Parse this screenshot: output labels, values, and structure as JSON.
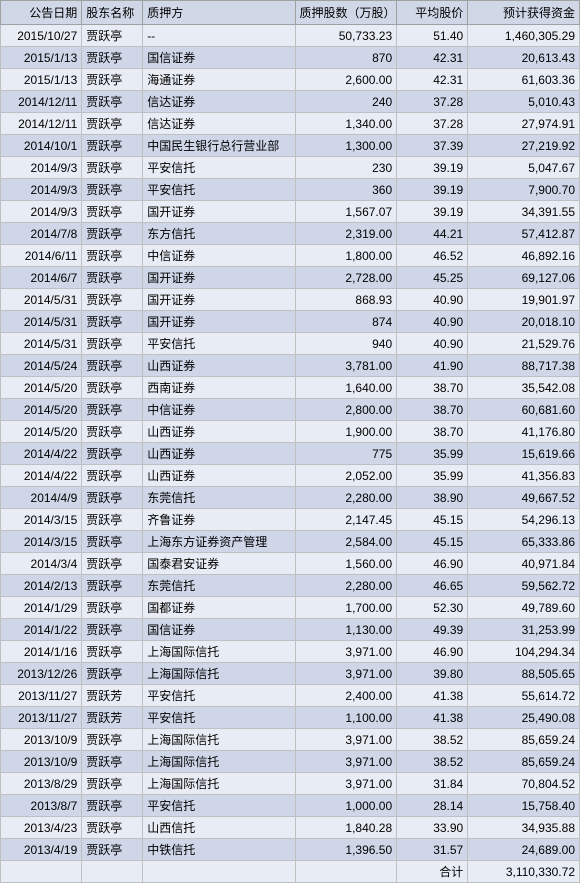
{
  "table": {
    "columns": [
      "公告日期",
      "股东名称",
      "质押方",
      "质押股数（万股）",
      "平均股价",
      "预计获得资金"
    ],
    "column_keys": [
      "date",
      "name",
      "party",
      "shares",
      "price",
      "funds"
    ],
    "column_classes": [
      "col-date",
      "col-name",
      "col-party",
      "col-shares",
      "col-price",
      "col-funds"
    ],
    "rows": [
      {
        "date": "2015/10/27",
        "name": "贾跃亭",
        "party": "--",
        "shares": "50,733.23",
        "price": "51.40",
        "funds": "1,460,305.29"
      },
      {
        "date": "2015/1/13",
        "name": "贾跃亭",
        "party": "国信证券",
        "shares": "870",
        "price": "42.31",
        "funds": "20,613.43"
      },
      {
        "date": "2015/1/13",
        "name": "贾跃亭",
        "party": "海通证券",
        "shares": "2,600.00",
        "price": "42.31",
        "funds": "61,603.36"
      },
      {
        "date": "2014/12/11",
        "name": "贾跃亭",
        "party": "信达证券",
        "shares": "240",
        "price": "37.28",
        "funds": "5,010.43"
      },
      {
        "date": "2014/12/11",
        "name": "贾跃亭",
        "party": "信达证券",
        "shares": "1,340.00",
        "price": "37.28",
        "funds": "27,974.91"
      },
      {
        "date": "2014/10/1",
        "name": "贾跃亭",
        "party": "中国民生银行总行营业部",
        "shares": "1,300.00",
        "price": "37.39",
        "funds": "27,219.92"
      },
      {
        "date": "2014/9/3",
        "name": "贾跃亭",
        "party": "平安信托",
        "shares": "230",
        "price": "39.19",
        "funds": "5,047.67"
      },
      {
        "date": "2014/9/3",
        "name": "贾跃亭",
        "party": "平安信托",
        "shares": "360",
        "price": "39.19",
        "funds": "7,900.70"
      },
      {
        "date": "2014/9/3",
        "name": "贾跃亭",
        "party": "国开证券",
        "shares": "1,567.07",
        "price": "39.19",
        "funds": "34,391.55"
      },
      {
        "date": "2014/7/8",
        "name": "贾跃亭",
        "party": "东方信托",
        "shares": "2,319.00",
        "price": "44.21",
        "funds": "57,412.87"
      },
      {
        "date": "2014/6/11",
        "name": "贾跃亭",
        "party": "中信证券",
        "shares": "1,800.00",
        "price": "46.52",
        "funds": "46,892.16"
      },
      {
        "date": "2014/6/7",
        "name": "贾跃亭",
        "party": "国开证券",
        "shares": "2,728.00",
        "price": "45.25",
        "funds": "69,127.06"
      },
      {
        "date": "2014/5/31",
        "name": "贾跃亭",
        "party": "国开证券",
        "shares": "868.93",
        "price": "40.90",
        "funds": "19,901.97"
      },
      {
        "date": "2014/5/31",
        "name": "贾跃亭",
        "party": "国开证券",
        "shares": "874",
        "price": "40.90",
        "funds": "20,018.10"
      },
      {
        "date": "2014/5/31",
        "name": "贾跃亭",
        "party": "平安信托",
        "shares": "940",
        "price": "40.90",
        "funds": "21,529.76"
      },
      {
        "date": "2014/5/24",
        "name": "贾跃亭",
        "party": "山西证券",
        "shares": "3,781.00",
        "price": "41.90",
        "funds": "88,717.38"
      },
      {
        "date": "2014/5/20",
        "name": "贾跃亭",
        "party": "西南证券",
        "shares": "1,640.00",
        "price": "38.70",
        "funds": "35,542.08"
      },
      {
        "date": "2014/5/20",
        "name": "贾跃亭",
        "party": "中信证券",
        "shares": "2,800.00",
        "price": "38.70",
        "funds": "60,681.60"
      },
      {
        "date": "2014/5/20",
        "name": "贾跃亭",
        "party": "山西证券",
        "shares": "1,900.00",
        "price": "38.70",
        "funds": "41,176.80"
      },
      {
        "date": "2014/4/22",
        "name": "贾跃亭",
        "party": "山西证券",
        "shares": "775",
        "price": "35.99",
        "funds": "15,619.66"
      },
      {
        "date": "2014/4/22",
        "name": "贾跃亭",
        "party": "山西证券",
        "shares": "2,052.00",
        "price": "35.99",
        "funds": "41,356.83"
      },
      {
        "date": "2014/4/9",
        "name": "贾跃亭",
        "party": "东莞信托",
        "shares": "2,280.00",
        "price": "38.90",
        "funds": "49,667.52"
      },
      {
        "date": "2014/3/15",
        "name": "贾跃亭",
        "party": "齐鲁证券",
        "shares": "2,147.45",
        "price": "45.15",
        "funds": "54,296.13"
      },
      {
        "date": "2014/3/15",
        "name": "贾跃亭",
        "party": "上海东方证券资产管理",
        "shares": "2,584.00",
        "price": "45.15",
        "funds": "65,333.86"
      },
      {
        "date": "2014/3/4",
        "name": "贾跃亭",
        "party": "国泰君安证券",
        "shares": "1,560.00",
        "price": "46.90",
        "funds": "40,971.84"
      },
      {
        "date": "2014/2/13",
        "name": "贾跃亭",
        "party": "东莞信托",
        "shares": "2,280.00",
        "price": "46.65",
        "funds": "59,562.72"
      },
      {
        "date": "2014/1/29",
        "name": "贾跃亭",
        "party": "国都证券",
        "shares": "1,700.00",
        "price": "52.30",
        "funds": "49,789.60"
      },
      {
        "date": "2014/1/22",
        "name": "贾跃亭",
        "party": "国信证券",
        "shares": "1,130.00",
        "price": "49.39",
        "funds": "31,253.99"
      },
      {
        "date": "2014/1/16",
        "name": "贾跃亭",
        "party": "上海国际信托",
        "shares": "3,971.00",
        "price": "46.90",
        "funds": "104,294.34"
      },
      {
        "date": "2013/12/26",
        "name": "贾跃亭",
        "party": "上海国际信托",
        "shares": "3,971.00",
        "price": "39.80",
        "funds": "88,505.65"
      },
      {
        "date": "2013/11/27",
        "name": "贾跃芳",
        "party": "平安信托",
        "shares": "2,400.00",
        "price": "41.38",
        "funds": "55,614.72"
      },
      {
        "date": "2013/11/27",
        "name": "贾跃芳",
        "party": "平安信托",
        "shares": "1,100.00",
        "price": "41.38",
        "funds": "25,490.08"
      },
      {
        "date": "2013/10/9",
        "name": "贾跃亭",
        "party": "上海国际信托",
        "shares": "3,971.00",
        "price": "38.52",
        "funds": "85,659.24"
      },
      {
        "date": "2013/10/9",
        "name": "贾跃亭",
        "party": "上海国际信托",
        "shares": "3,971.00",
        "price": "38.52",
        "funds": "85,659.24"
      },
      {
        "date": "2013/8/29",
        "name": "贾跃亭",
        "party": "上海国际信托",
        "shares": "3,971.00",
        "price": "31.84",
        "funds": "70,804.52"
      },
      {
        "date": "2013/8/7",
        "name": "贾跃亭",
        "party": "平安信托",
        "shares": "1,000.00",
        "price": "28.14",
        "funds": "15,758.40"
      },
      {
        "date": "2013/4/23",
        "name": "贾跃亭",
        "party": "山西信托",
        "shares": "1,840.28",
        "price": "33.90",
        "funds": "34,935.88"
      },
      {
        "date": "2013/4/19",
        "name": "贾跃亭",
        "party": "中铁信托",
        "shares": "1,396.50",
        "price": "31.57",
        "funds": "24,689.00"
      }
    ],
    "footer": {
      "label": "合计",
      "total_funds": "3,110,330.72"
    },
    "colors": {
      "header_bg": "#d0d8e8",
      "row_even_bg": "#e8ecf4",
      "row_odd_bg": "#ced6e8",
      "border": "#c0c0c0",
      "text": "#000000"
    }
  }
}
